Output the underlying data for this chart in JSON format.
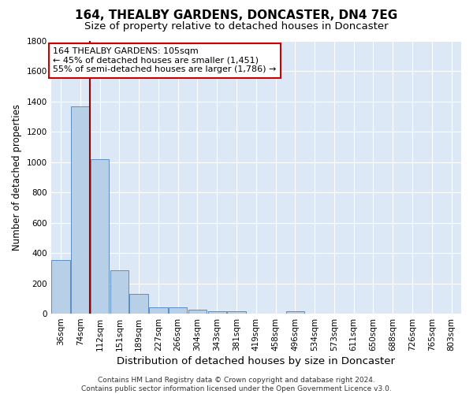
{
  "title": "164, THEALBY GARDENS, DONCASTER, DN4 7EG",
  "subtitle": "Size of property relative to detached houses in Doncaster",
  "xlabel": "Distribution of detached houses by size in Doncaster",
  "ylabel": "Number of detached properties",
  "categories": [
    "36sqm",
    "74sqm",
    "112sqm",
    "151sqm",
    "189sqm",
    "227sqm",
    "266sqm",
    "304sqm",
    "343sqm",
    "381sqm",
    "419sqm",
    "458sqm",
    "496sqm",
    "534sqm",
    "573sqm",
    "611sqm",
    "650sqm",
    "688sqm",
    "726sqm",
    "765sqm",
    "803sqm"
  ],
  "values": [
    355,
    1365,
    1020,
    285,
    130,
    43,
    43,
    28,
    18,
    18,
    0,
    0,
    18,
    0,
    0,
    0,
    0,
    0,
    0,
    0,
    0
  ],
  "bar_color": "#b8cfe8",
  "bar_edge_color": "#5b8ec4",
  "background_color": "#dce8f5",
  "grid_color": "#ffffff",
  "property_line_color": "#990000",
  "annotation_text": "164 THEALBY GARDENS: 105sqm\n← 45% of detached houses are smaller (1,451)\n55% of semi-detached houses are larger (1,786) →",
  "annotation_box_color": "#ffffff",
  "annotation_box_edge_color": "#cc0000",
  "ylim": [
    0,
    1800
  ],
  "yticks": [
    0,
    200,
    400,
    600,
    800,
    1000,
    1200,
    1400,
    1600,
    1800
  ],
  "footer": "Contains HM Land Registry data © Crown copyright and database right 2024.\nContains public sector information licensed under the Open Government Licence v3.0.",
  "title_fontsize": 11,
  "subtitle_fontsize": 9.5,
  "xlabel_fontsize": 9.5,
  "ylabel_fontsize": 8.5,
  "tick_fontsize": 7.5,
  "annotation_fontsize": 8,
  "footer_fontsize": 6.5,
  "fig_bg": "#ffffff"
}
